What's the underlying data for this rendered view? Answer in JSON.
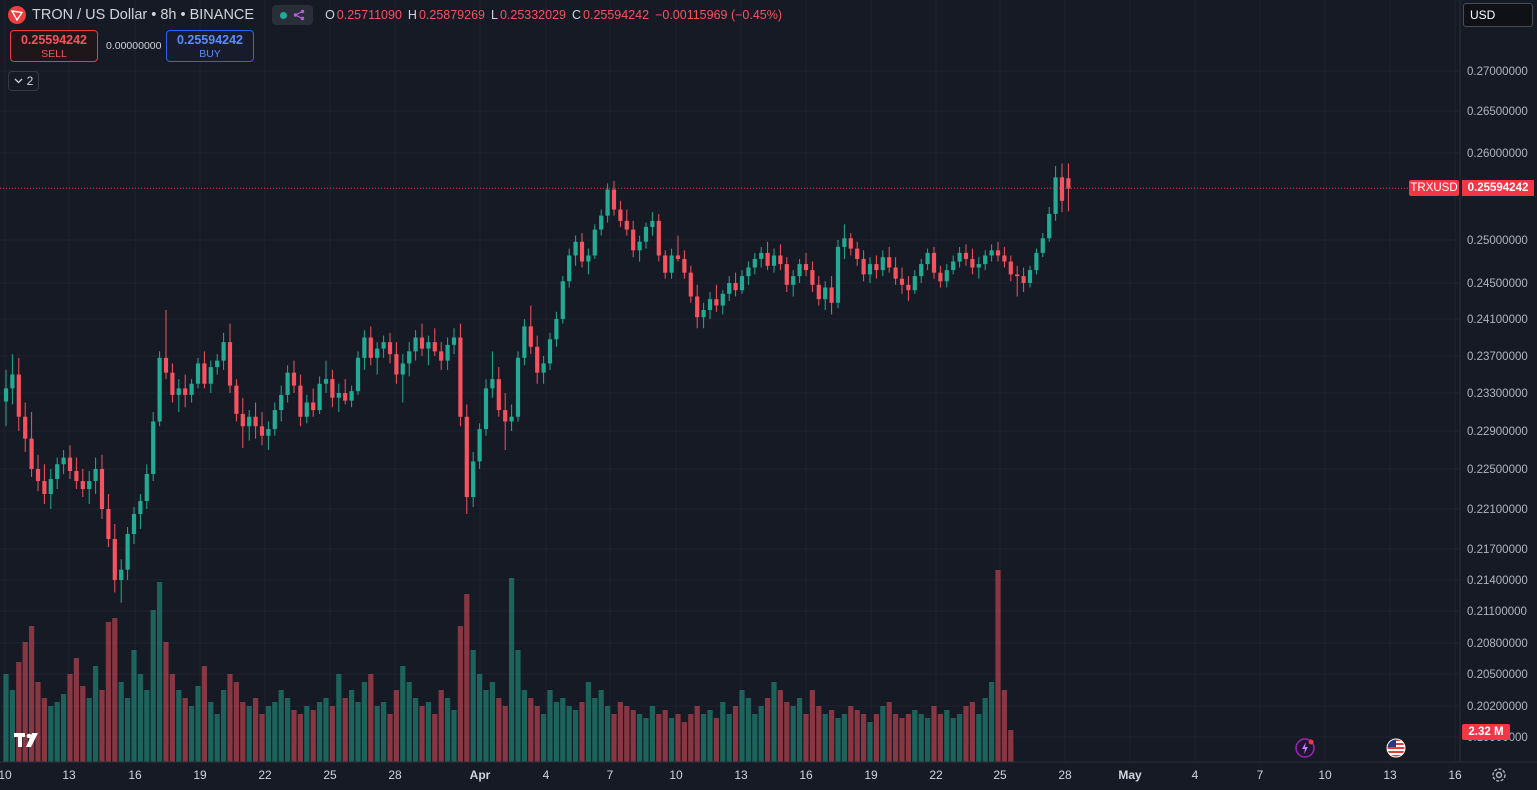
{
  "legend": {
    "title": "TRON / US Dollar • 8h • BINANCE",
    "ohlc": [
      {
        "key": "O",
        "value": "0.25711090"
      },
      {
        "key": "H",
        "value": "0.25879269"
      },
      {
        "key": "L",
        "value": "0.25332029"
      },
      {
        "key": "C",
        "value": "0.25594242"
      }
    ],
    "change": "−0.00115969 (−0.45%)",
    "logo_icon": "tron-logo-icon",
    "status_icon": "market-status-dot"
  },
  "trade": {
    "sell_price": "0.25594242",
    "sell_label": "SELL",
    "spread": "0.00000000",
    "buy_price": "0.25594242",
    "buy_label": "BUY"
  },
  "indicators": {
    "collapse_count": "2"
  },
  "currency": {
    "selected": "USD"
  },
  "price_scale": {
    "labels": [
      "0.27000000",
      "0.26500000",
      "0.26000000",
      "0.25000000",
      "0.24500000",
      "0.24100000",
      "0.23700000",
      "0.23300000",
      "0.22900000",
      "0.22500000",
      "0.22100000",
      "0.21700000",
      "0.21400000",
      "0.21100000",
      "0.20800000",
      "0.20500000",
      "0.20200000",
      "0.19900000"
    ],
    "symbol_tag": "TRXUSD",
    "last_price": "0.25594242",
    "volume_tag": "2.32 M"
  },
  "time_scale": {
    "labels": [
      "10",
      "13",
      "16",
      "19",
      "22",
      "25",
      "28",
      "Apr",
      "4",
      "7",
      "10",
      "13",
      "16",
      "19",
      "22",
      "25",
      "28",
      "May",
      "4",
      "7",
      "10",
      "13",
      "16"
    ]
  },
  "colors": {
    "up": "#22ab94",
    "down": "#f7525f",
    "background": "#161a25",
    "grid": "#1f2330"
  },
  "chart_data": {
    "type": "candlestick",
    "symbol": "TRXUSD",
    "interval": "8h",
    "candles": [
      [
        0.2321,
        0.2355,
        0.2295,
        0.2335
      ],
      [
        0.2335,
        0.2372,
        0.2318,
        0.235
      ],
      [
        0.235,
        0.2368,
        0.229,
        0.2305
      ],
      [
        0.2305,
        0.232,
        0.2268,
        0.2282
      ],
      [
        0.2282,
        0.231,
        0.2242,
        0.225
      ],
      [
        0.225,
        0.2265,
        0.2228,
        0.2238
      ],
      [
        0.2238,
        0.2255,
        0.2215,
        0.2225
      ],
      [
        0.2225,
        0.225,
        0.221,
        0.224
      ],
      [
        0.224,
        0.2262,
        0.223,
        0.2255
      ],
      [
        0.2255,
        0.227,
        0.2245,
        0.2262
      ],
      [
        0.2262,
        0.2275,
        0.224,
        0.2248
      ],
      [
        0.2248,
        0.2262,
        0.223,
        0.2238
      ],
      [
        0.2238,
        0.225,
        0.2222,
        0.223
      ],
      [
        0.223,
        0.2248,
        0.2215,
        0.2238
      ],
      [
        0.2238,
        0.2262,
        0.2225,
        0.225
      ],
      [
        0.225,
        0.2265,
        0.22,
        0.221
      ],
      [
        0.221,
        0.2225,
        0.2172,
        0.218
      ],
      [
        0.218,
        0.2195,
        0.2128,
        0.214
      ],
      [
        0.214,
        0.216,
        0.2118,
        0.215
      ],
      [
        0.215,
        0.2192,
        0.214,
        0.2185
      ],
      [
        0.2185,
        0.2212,
        0.2175,
        0.2205
      ],
      [
        0.2205,
        0.2225,
        0.219,
        0.2218
      ],
      [
        0.2218,
        0.2255,
        0.221,
        0.2245
      ],
      [
        0.2245,
        0.231,
        0.2238,
        0.23
      ],
      [
        0.23,
        0.2375,
        0.2295,
        0.2368
      ],
      [
        0.2368,
        0.242,
        0.2345,
        0.2352
      ],
      [
        0.2352,
        0.2362,
        0.232,
        0.2328
      ],
      [
        0.2328,
        0.2345,
        0.231,
        0.2335
      ],
      [
        0.2335,
        0.235,
        0.2315,
        0.2328
      ],
      [
        0.2328,
        0.2345,
        0.232,
        0.234
      ],
      [
        0.234,
        0.2368,
        0.2335,
        0.2362
      ],
      [
        0.2362,
        0.2375,
        0.2335,
        0.234
      ],
      [
        0.234,
        0.2365,
        0.233,
        0.2358
      ],
      [
        0.2358,
        0.2372,
        0.235,
        0.2365
      ],
      [
        0.2365,
        0.2395,
        0.2355,
        0.2385
      ],
      [
        0.2385,
        0.2405,
        0.233,
        0.2338
      ],
      [
        0.2338,
        0.2345,
        0.23,
        0.2308
      ],
      [
        0.2308,
        0.2325,
        0.2272,
        0.2295
      ],
      [
        0.2295,
        0.2312,
        0.228,
        0.2305
      ],
      [
        0.2305,
        0.232,
        0.2282,
        0.2295
      ],
      [
        0.2295,
        0.231,
        0.2275,
        0.2285
      ],
      [
        0.2285,
        0.23,
        0.227,
        0.2292
      ],
      [
        0.2292,
        0.232,
        0.2285,
        0.2312
      ],
      [
        0.2312,
        0.2338,
        0.23,
        0.2328
      ],
      [
        0.2328,
        0.236,
        0.232,
        0.2352
      ],
      [
        0.2352,
        0.2365,
        0.233,
        0.2338
      ],
      [
        0.2338,
        0.235,
        0.2295,
        0.2305
      ],
      [
        0.2305,
        0.2328,
        0.2298,
        0.232
      ],
      [
        0.232,
        0.2335,
        0.2305,
        0.2312
      ],
      [
        0.2312,
        0.2348,
        0.2308,
        0.234
      ],
      [
        0.234,
        0.2365,
        0.233,
        0.2345
      ],
      [
        0.2345,
        0.2355,
        0.2315,
        0.2325
      ],
      [
        0.2325,
        0.234,
        0.231,
        0.233
      ],
      [
        0.233,
        0.2345,
        0.2318,
        0.2322
      ],
      [
        0.2322,
        0.2338,
        0.2315,
        0.2332
      ],
      [
        0.2332,
        0.2375,
        0.2328,
        0.2368
      ],
      [
        0.2368,
        0.2398,
        0.2355,
        0.239
      ],
      [
        0.239,
        0.2402,
        0.236,
        0.2368
      ],
      [
        0.2368,
        0.2385,
        0.235,
        0.2378
      ],
      [
        0.2378,
        0.2392,
        0.2368,
        0.2385
      ],
      [
        0.2385,
        0.2395,
        0.2362,
        0.2372
      ],
      [
        0.2372,
        0.2385,
        0.234,
        0.235
      ],
      [
        0.235,
        0.2372,
        0.232,
        0.2362
      ],
      [
        0.2362,
        0.2385,
        0.2348,
        0.2375
      ],
      [
        0.2375,
        0.2398,
        0.2365,
        0.239
      ],
      [
        0.239,
        0.2405,
        0.237,
        0.2378
      ],
      [
        0.2378,
        0.2392,
        0.236,
        0.2385
      ],
      [
        0.2385,
        0.24,
        0.237,
        0.2375
      ],
      [
        0.2375,
        0.2385,
        0.2355,
        0.2365
      ],
      [
        0.2365,
        0.239,
        0.2355,
        0.2382
      ],
      [
        0.2382,
        0.24,
        0.2372,
        0.239
      ],
      [
        0.239,
        0.2405,
        0.2295,
        0.2305
      ],
      [
        0.2305,
        0.2318,
        0.2205,
        0.2222
      ],
      [
        0.2222,
        0.2268,
        0.2212,
        0.2258
      ],
      [
        0.2258,
        0.2298,
        0.225,
        0.2292
      ],
      [
        0.2292,
        0.2345,
        0.2285,
        0.2335
      ],
      [
        0.2335,
        0.2375,
        0.2325,
        0.2345
      ],
      [
        0.2345,
        0.2358,
        0.2305,
        0.2312
      ],
      [
        0.2312,
        0.233,
        0.227,
        0.23
      ],
      [
        0.23,
        0.2318,
        0.229,
        0.2305
      ],
      [
        0.2305,
        0.2375,
        0.23,
        0.2368
      ],
      [
        0.2368,
        0.241,
        0.236,
        0.2402
      ],
      [
        0.2402,
        0.2425,
        0.2372,
        0.238
      ],
      [
        0.238,
        0.2392,
        0.234,
        0.2352
      ],
      [
        0.2352,
        0.237,
        0.234,
        0.2362
      ],
      [
        0.2362,
        0.2395,
        0.2355,
        0.2388
      ],
      [
        0.2388,
        0.2418,
        0.238,
        0.241
      ],
      [
        0.241,
        0.2458,
        0.2405,
        0.2452
      ],
      [
        0.2452,
        0.249,
        0.2445,
        0.2482
      ],
      [
        0.2482,
        0.2505,
        0.247,
        0.2498
      ],
      [
        0.2498,
        0.2508,
        0.2468,
        0.2475
      ],
      [
        0.2475,
        0.249,
        0.246,
        0.2482
      ],
      [
        0.2482,
        0.2518,
        0.2478,
        0.2512
      ],
      [
        0.2512,
        0.2535,
        0.2505,
        0.2528
      ],
      [
        0.2528,
        0.2565,
        0.252,
        0.2558
      ],
      [
        0.2558,
        0.2568,
        0.2528,
        0.2535
      ],
      [
        0.2535,
        0.2545,
        0.2515,
        0.2522
      ],
      [
        0.2522,
        0.2535,
        0.2505,
        0.2512
      ],
      [
        0.2512,
        0.2522,
        0.248,
        0.2488
      ],
      [
        0.2488,
        0.2505,
        0.2475,
        0.2498
      ],
      [
        0.2498,
        0.252,
        0.249,
        0.2515
      ],
      [
        0.2515,
        0.2532,
        0.2505,
        0.2522
      ],
      [
        0.2522,
        0.253,
        0.2475,
        0.2482
      ],
      [
        0.2482,
        0.2488,
        0.2455,
        0.2462
      ],
      [
        0.2462,
        0.249,
        0.2455,
        0.2482
      ],
      [
        0.2482,
        0.2505,
        0.2475,
        0.2478
      ],
      [
        0.2478,
        0.2488,
        0.2455,
        0.2462
      ],
      [
        0.2462,
        0.247,
        0.2428,
        0.2435
      ],
      [
        0.2435,
        0.2448,
        0.24,
        0.2412
      ],
      [
        0.2412,
        0.2428,
        0.24,
        0.242
      ],
      [
        0.242,
        0.244,
        0.241,
        0.2432
      ],
      [
        0.2432,
        0.2448,
        0.2418,
        0.2425
      ],
      [
        0.2425,
        0.2442,
        0.2415,
        0.2438
      ],
      [
        0.2438,
        0.2458,
        0.243,
        0.245
      ],
      [
        0.245,
        0.2462,
        0.2435,
        0.2442
      ],
      [
        0.2442,
        0.2465,
        0.2438,
        0.2458
      ],
      [
        0.2458,
        0.2475,
        0.2448,
        0.2468
      ],
      [
        0.2468,
        0.2485,
        0.246,
        0.2478
      ],
      [
        0.2478,
        0.2492,
        0.2468,
        0.2485
      ],
      [
        0.2485,
        0.2498,
        0.2465,
        0.247
      ],
      [
        0.247,
        0.249,
        0.2462,
        0.2482
      ],
      [
        0.2482,
        0.2495,
        0.2465,
        0.2472
      ],
      [
        0.2472,
        0.248,
        0.244,
        0.2448
      ],
      [
        0.2448,
        0.2465,
        0.2435,
        0.2458
      ],
      [
        0.2458,
        0.2478,
        0.245,
        0.2472
      ],
      [
        0.2472,
        0.2485,
        0.2458,
        0.2465
      ],
      [
        0.2465,
        0.2475,
        0.244,
        0.2448
      ],
      [
        0.2448,
        0.2458,
        0.2425,
        0.2432
      ],
      [
        0.2432,
        0.2452,
        0.242,
        0.2445
      ],
      [
        0.2445,
        0.2458,
        0.2415,
        0.2428
      ],
      [
        0.2428,
        0.25,
        0.2422,
        0.2492
      ],
      [
        0.2492,
        0.2518,
        0.2478,
        0.2502
      ],
      [
        0.2502,
        0.2508,
        0.2482,
        0.249
      ],
      [
        0.249,
        0.2498,
        0.247,
        0.2478
      ],
      [
        0.2478,
        0.2488,
        0.2452,
        0.246
      ],
      [
        0.246,
        0.248,
        0.245,
        0.2472
      ],
      [
        0.2472,
        0.2482,
        0.2455,
        0.2465
      ],
      [
        0.2465,
        0.2488,
        0.2458,
        0.248
      ],
      [
        0.248,
        0.2492,
        0.2462,
        0.2468
      ],
      [
        0.2468,
        0.248,
        0.2448,
        0.2455
      ],
      [
        0.2455,
        0.2468,
        0.2438,
        0.2448
      ],
      [
        0.2448,
        0.2458,
        0.243,
        0.2442
      ],
      [
        0.2442,
        0.2465,
        0.2438,
        0.2458
      ],
      [
        0.2458,
        0.2478,
        0.245,
        0.2472
      ],
      [
        0.2472,
        0.249,
        0.2465,
        0.2485
      ],
      [
        0.2485,
        0.2492,
        0.2455,
        0.2462
      ],
      [
        0.2462,
        0.247,
        0.2445,
        0.2452
      ],
      [
        0.2452,
        0.2472,
        0.2445,
        0.2465
      ],
      [
        0.2465,
        0.2482,
        0.246,
        0.2475
      ],
      [
        0.2475,
        0.2492,
        0.2468,
        0.2485
      ],
      [
        0.2485,
        0.2495,
        0.247,
        0.2478
      ],
      [
        0.2478,
        0.249,
        0.246,
        0.2468
      ],
      [
        0.2468,
        0.248,
        0.2455,
        0.2472
      ],
      [
        0.2472,
        0.2488,
        0.2465,
        0.2482
      ],
      [
        0.2482,
        0.2495,
        0.2475,
        0.2488
      ],
      [
        0.2488,
        0.2498,
        0.2475,
        0.2482
      ],
      [
        0.2482,
        0.2492,
        0.2468,
        0.2475
      ],
      [
        0.2475,
        0.2482,
        0.2452,
        0.246
      ],
      [
        0.246,
        0.247,
        0.2435,
        0.2458
      ],
      [
        0.2458,
        0.2468,
        0.244,
        0.245
      ],
      [
        0.245,
        0.247,
        0.2445,
        0.2465
      ],
      [
        0.2465,
        0.249,
        0.246,
        0.2485
      ],
      [
        0.2485,
        0.2508,
        0.248,
        0.2502
      ],
      [
        0.2502,
        0.2538,
        0.2498,
        0.253
      ],
      [
        0.253,
        0.2585,
        0.2522,
        0.2572
      ],
      [
        0.2572,
        0.2588,
        0.2532,
        0.2545
      ],
      [
        0.2571,
        0.2588,
        0.2533,
        0.2559
      ]
    ],
    "volumes": [
      22,
      18,
      25,
      30,
      34,
      20,
      16,
      14,
      15,
      17,
      22,
      26,
      19,
      16,
      24,
      18,
      35,
      36,
      20,
      16,
      28,
      22,
      18,
      38,
      45,
      30,
      22,
      18,
      16,
      14,
      19,
      24,
      15,
      12,
      18,
      22,
      20,
      15,
      14,
      16,
      12,
      14,
      15,
      18,
      16,
      13,
      12,
      14,
      13,
      15,
      16,
      14,
      22,
      16,
      18,
      15,
      20,
      22,
      14,
      15,
      12,
      18,
      24,
      20,
      16,
      14,
      15,
      12,
      18,
      16,
      13,
      34,
      42,
      28,
      22,
      18,
      20,
      16,
      14,
      46,
      28,
      18,
      16,
      14,
      12,
      18,
      15,
      16,
      14,
      13,
      15,
      20,
      16,
      18,
      14,
      12,
      15,
      14,
      13,
      12,
      11,
      14,
      12,
      13,
      11,
      12,
      10,
      12,
      14,
      12,
      13,
      11,
      15,
      12,
      14,
      18,
      16,
      12,
      14,
      16,
      20,
      18,
      15,
      14,
      16,
      12,
      18,
      14,
      12,
      13,
      11,
      12,
      14,
      13,
      12,
      10,
      12,
      14,
      15,
      12,
      11,
      12,
      13,
      12,
      11,
      14,
      12,
      13,
      11,
      12,
      14,
      15,
      12,
      16,
      20,
      48,
      18,
      8
    ]
  }
}
